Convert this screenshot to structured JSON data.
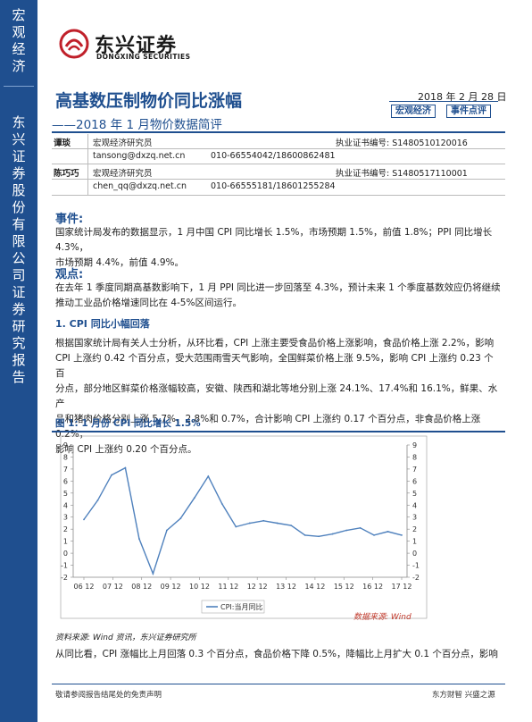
{
  "sidebar": {
    "top_label": "宏观经济",
    "bottom_label": "东兴证券股份有限公司证券研究报告"
  },
  "logo": {
    "cn": "东兴证券",
    "en": "DONGXING SECURITIES"
  },
  "header": {
    "title": "高基数压制物价同比涨幅",
    "subtitle": "——2018 年 1 月物价数据简评",
    "date": "2018 年 2 月 28 日",
    "tag1": "宏观经济",
    "tag2": "事件点评"
  },
  "authors": [
    {
      "name": "谭琰",
      "role": "宏观经济研究员",
      "license": "执业证书编号:  S1480510120016",
      "email": "tansong@dxzq.net.cn",
      "phone": "010-66554042/18600862481"
    },
    {
      "name": "陈巧巧",
      "role": "宏观经济研究员",
      "license": "执业证书编号:  S1480517110001",
      "email": "chen_qq@dxzq.net.cn",
      "phone": "010-66555181/18601255284"
    }
  ],
  "event": {
    "heading": "事件:",
    "line1": "国家统计局发布的数据显示，1 月中国 CPI 同比增长 1.5%，市场预期 1.5%，前值 1.8%；PPI 同比增长 4.3%，",
    "line2": "市场预期 4.4%，前值 4.9%。"
  },
  "view": {
    "heading": "观点:",
    "line1": "在去年 1 季度同期高基数影响下，1 月 PPI 同比进一步回落至 4.3%，预计未来 1 个季度基数效应仍将继续",
    "line2": "推动工业品价格增速同比在 4-5%区间运行。"
  },
  "section1": {
    "heading": "1.  CPI 同比小幅回落",
    "lines": [
      "根据国家统计局有关人士分析，从环比看，CPI 上涨主要受食品价格上涨影响，食品价格上涨 2.2%，影响",
      "CPI 上涨约 0.42 个百分点，受大范围雨雪天气影响，全国鲜菜价格上涨 9.5%，影响 CPI 上涨约 0.23 个百",
      "分点，部分地区鲜菜价格涨幅较高，安徽、陕西和湖北等地分别上涨 24.1%、17.4%和 16.1%，鲜果、水产",
      "品和猪肉价格分别上涨 5.7%、2.8%和 0.7%，合计影响 CPI 上涨约 0.17 个百分点，非食品价格上涨 0.2%，",
      "影响 CPI 上涨约 0.20 个百分点。"
    ]
  },
  "figure": {
    "title": "图 1: 1 月份 CPI 同比增长 1.5%",
    "source_inner": "数据来源: Wind",
    "source_outer": "资料来源: Wind 资讯，东兴证券研究所"
  },
  "chart_data": {
    "type": "line",
    "title": "",
    "xlabel": "",
    "ylabel": "",
    "ylim": [
      -2,
      9
    ],
    "x": [
      "06-12",
      "07-06",
      "07-12",
      "08-06",
      "08-12",
      "09-06",
      "09-12",
      "10-06",
      "10-12",
      "11-06",
      "11-12",
      "12-06",
      "12-12",
      "13-06",
      "13-12",
      "14-06",
      "14-12",
      "15-06",
      "15-12",
      "16-06",
      "16-12",
      "17-06",
      "17-12",
      "18-01"
    ],
    "x_tick_labels": [
      "06 12",
      "07 12",
      "08 12",
      "09 12",
      "10 12",
      "11 12",
      "12 12",
      "13 12",
      "14 12",
      "15 12",
      "16 12",
      "17 12"
    ],
    "y_ticks_left": [
      -2,
      -1,
      0,
      1,
      2,
      3,
      4,
      5,
      6,
      7,
      8,
      9
    ],
    "y_ticks_right": [
      -2,
      -1,
      0,
      1,
      2,
      3,
      4,
      5,
      6,
      7,
      8,
      9
    ],
    "series": [
      {
        "name": "CPI:当月同比",
        "color": "#4f81bd",
        "values": [
          2.8,
          4.4,
          6.5,
          7.1,
          1.2,
          -1.7,
          1.9,
          2.9,
          4.6,
          6.4,
          4.1,
          2.2,
          2.5,
          2.7,
          2.5,
          2.3,
          1.5,
          1.4,
          1.6,
          1.9,
          2.1,
          1.5,
          1.8,
          1.5
        ]
      }
    ],
    "grid": false,
    "legend_position": "bottom"
  },
  "section2": {
    "line1": "从同比看，CPI 涨幅比上月回落 0.3 个百分点，食品价格下降 0.5%，降幅比上月扩大 0.1 个百分点，影响"
  },
  "footer": {
    "left": "敬请参阅报告结尾处的免责声明",
    "right": "东方财智  兴盛之源"
  }
}
